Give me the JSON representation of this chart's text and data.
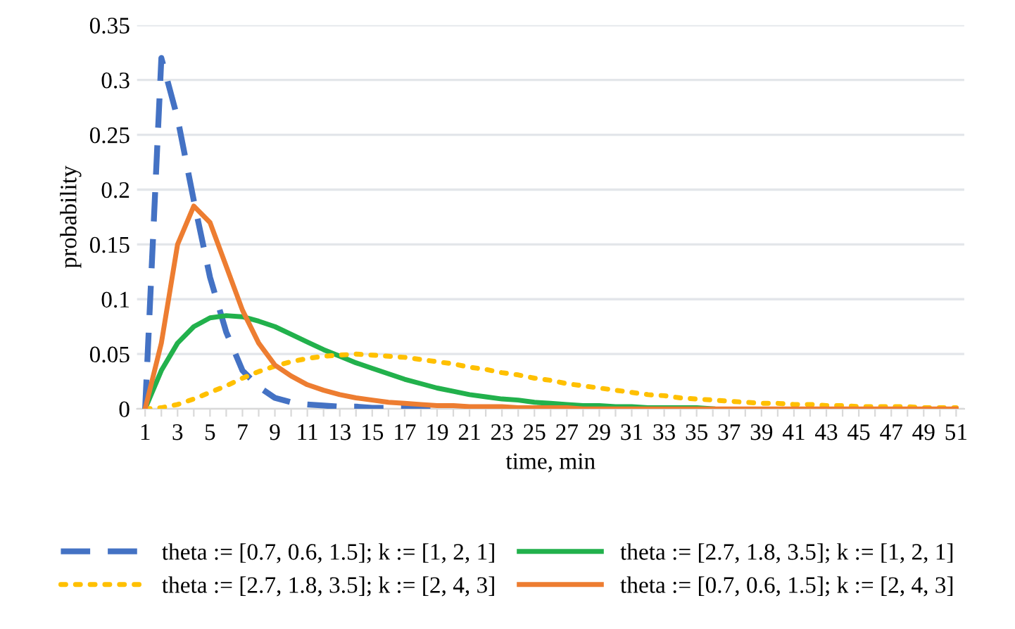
{
  "chart_data": {
    "type": "line",
    "xlabel": "time, min",
    "ylabel": "probability",
    "categories": [
      "1",
      null,
      "3",
      null,
      "5",
      null,
      "7",
      null,
      "9",
      null,
      "11",
      null,
      "13",
      null,
      "15",
      null,
      "17",
      null,
      "19",
      null,
      "21",
      null,
      "23",
      null,
      "25",
      null,
      "27",
      null,
      "29",
      null,
      "31",
      null,
      "33",
      null,
      "35",
      null,
      "37",
      null,
      "39",
      null,
      "41",
      null,
      "43",
      null,
      "45",
      null,
      "47",
      null,
      "49",
      null,
      "51"
    ],
    "ylim": [
      0,
      0.35
    ],
    "yticks": [
      {
        "value": 0,
        "label": "0"
      },
      {
        "value": 0.05,
        "label": "0.05"
      },
      {
        "value": 0.1,
        "label": "0.1"
      },
      {
        "value": 0.15,
        "label": "0.15"
      },
      {
        "value": 0.2,
        "label": "0.2"
      },
      {
        "value": 0.25,
        "label": "0.25"
      },
      {
        "value": 0.3,
        "label": "0.3"
      },
      {
        "value": 0.35,
        "label": "0.35"
      }
    ],
    "grid": "y",
    "legend": "bottom",
    "marker": "none",
    "series": [
      {
        "name": "theta := [0.7, 0.6, 1.5]; k := [1, 2, 1]",
        "color": "#4472c4",
        "line_style": "dashed",
        "values": [
          0,
          0.32,
          0.265,
          0.19,
          0.12,
          0.07,
          0.035,
          0.02,
          0.01,
          0.006,
          0.004,
          0.003,
          0.002,
          0.002,
          0.001,
          0.001,
          0.001,
          0.001,
          0.001,
          null,
          null,
          null,
          null,
          null,
          null,
          null,
          null,
          null,
          null,
          null,
          null,
          null,
          null,
          null,
          null,
          null,
          null,
          null,
          null,
          null,
          null,
          null,
          null,
          null,
          null,
          null,
          null,
          null,
          null,
          null,
          null
        ]
      },
      {
        "name": "theta := [2.7, 1.8, 3.5]; k := [1, 2, 1]",
        "color": "#22b14c",
        "line_style": "solid",
        "values": [
          0,
          0.035,
          0.06,
          0.075,
          0.083,
          0.085,
          0.084,
          0.08,
          0.075,
          0.068,
          0.061,
          0.054,
          0.048,
          0.042,
          0.037,
          0.032,
          0.027,
          0.023,
          0.019,
          0.016,
          0.013,
          0.011,
          0.009,
          0.008,
          0.006,
          0.005,
          0.004,
          0.003,
          0.003,
          0.002,
          0.002,
          0.001,
          0.001,
          0.001,
          0.001,
          0,
          null,
          null,
          null,
          null,
          null,
          null,
          null,
          null,
          null,
          null,
          null,
          null,
          null,
          null,
          null
        ]
      },
      {
        "name": "theta := [2.7, 1.8, 3.5]; k := [2, 4, 3]",
        "color": "#ffc000",
        "line_style": "dotted",
        "values": [
          0,
          0.001,
          0.004,
          0.009,
          0.015,
          0.021,
          0.028,
          0.034,
          0.039,
          0.043,
          0.046,
          0.048,
          0.049,
          0.05,
          0.049,
          0.048,
          0.047,
          0.045,
          0.043,
          0.041,
          0.038,
          0.036,
          0.033,
          0.031,
          0.028,
          0.026,
          0.023,
          0.021,
          0.019,
          0.017,
          0.015,
          0.013,
          0.012,
          0.01,
          0.009,
          0.008,
          0.007,
          0.006,
          0.005,
          0.005,
          0.004,
          0.004,
          0.003,
          0.003,
          0.002,
          0.002,
          0.002,
          0.002,
          0.001,
          0.001,
          0.001
        ]
      },
      {
        "name": "theta := [0.7, 0.6, 1.5]; k := [2, 4, 3]",
        "color": "#ed7d31",
        "line_style": "solid",
        "values": [
          0,
          0.06,
          0.15,
          0.185,
          0.17,
          0.13,
          0.09,
          0.06,
          0.04,
          0.03,
          0.022,
          0.017,
          0.013,
          0.01,
          0.008,
          0.006,
          0.005,
          0.004,
          0.003,
          0.003,
          0.002,
          0.002,
          0.002,
          0.001,
          0.001,
          0.001,
          0.001,
          0,
          0,
          0,
          0,
          0,
          0,
          0,
          0,
          0,
          0,
          0,
          0,
          0,
          0,
          0,
          0,
          0,
          0,
          0,
          0,
          0,
          0,
          0,
          0
        ]
      }
    ]
  }
}
